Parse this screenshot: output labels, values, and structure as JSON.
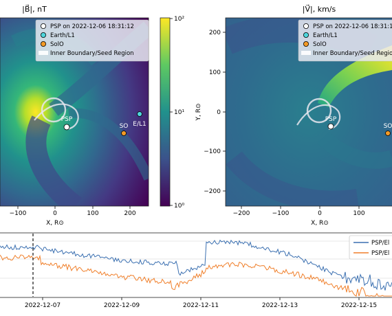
{
  "chart_data": [
    {
      "type": "heatmap",
      "title": "|B⃗|, nT",
      "xlabel": "X, R⊙",
      "ylabel": "",
      "x_ticks": [
        "−100",
        "0",
        "100",
        "200"
      ],
      "xlim": [
        -150,
        240
      ],
      "colorbar": {
        "scale": "log",
        "range": [
          1,
          100
        ],
        "tick_labels": [
          "10²",
          "10¹",
          "10⁰"
        ],
        "colormap": "viridis"
      },
      "legend": [
        "PSP on 2022-12-06 18:31:12",
        "Earth/L1",
        "SolO",
        "Inner Boundary/Seed Region"
      ],
      "markers": [
        {
          "label": "PSP",
          "x": 28,
          "y": -38,
          "color": "#ffffff"
        },
        {
          "label": "E/L1",
          "x": 212,
          "y": 0,
          "color": "#4fd6dc"
        },
        {
          "label": "SO",
          "x": 172,
          "y": -48,
          "color": "#f39a26"
        }
      ]
    },
    {
      "type": "heatmap",
      "title": "|V⃗|, km/s",
      "xlabel": "X, R⊙",
      "ylabel": "Y, R⊙",
      "x_ticks": [
        "−200",
        "−100",
        "0",
        "100"
      ],
      "y_ticks": [
        "200",
        "100",
        "0",
        "−100",
        "−200"
      ],
      "xlim": [
        -235,
        185
      ],
      "ylim": [
        -240,
        240
      ],
      "legend": [
        "PSP on 2022-12-06 18:31:12",
        "Earth/L1",
        "SolO",
        "Inner Boundary/Seed Region"
      ],
      "markers": [
        {
          "label": "PSP",
          "x": 28,
          "y": -38,
          "color": "#ffffff"
        },
        {
          "label": "SO",
          "x": 172,
          "y": -48,
          "color": "#f39a26"
        }
      ]
    },
    {
      "type": "line",
      "x_ticks": [
        "2022-12-07",
        "2022-12-09",
        "2022-12-11",
        "2022-12-13",
        "2022-12-15"
      ],
      "vline": "2022-12-06 18:31:12",
      "series": [
        {
          "name": "PSP/El",
          "color": "#3a6fb0"
        },
        {
          "name": "PSP/El",
          "color": "#f07f2a"
        }
      ]
    }
  ],
  "labels": {
    "psp": "PSP",
    "el1": "E/L1",
    "so": "SO",
    "cb_top": "10²",
    "cb_mid": "10¹",
    "cb_bot": "10⁰"
  },
  "colors": {
    "psp": "#ffffff",
    "earth": "#4fd6dc",
    "solo": "#f39a26",
    "series_blue": "#3a6fb0",
    "series_orange": "#f07f2a"
  }
}
